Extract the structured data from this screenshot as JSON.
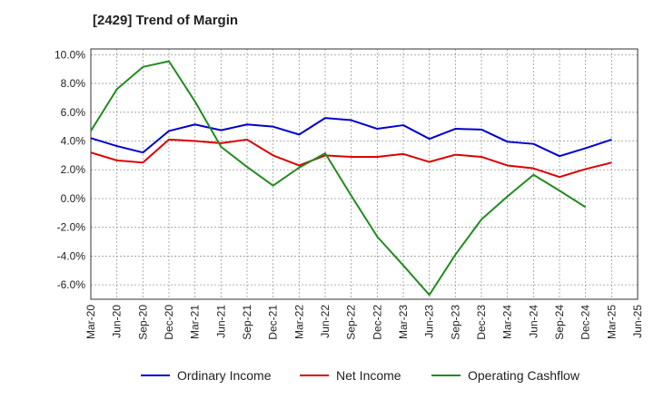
{
  "chart_data": {
    "type": "line",
    "title": "[2429]  Trend of Margin",
    "xlabel": "",
    "ylabel": "",
    "x": [
      "Mar-20",
      "Jun-20",
      "Sep-20",
      "Dec-20",
      "Mar-21",
      "Jun-21",
      "Sep-21",
      "Dec-21",
      "Mar-22",
      "Jun-22",
      "Sep-22",
      "Dec-22",
      "Mar-23",
      "Jun-23",
      "Sep-23",
      "Dec-23",
      "Mar-24",
      "Jun-24",
      "Sep-24",
      "Dec-24",
      "Mar-25",
      "Jun-25"
    ],
    "yticks": [
      "10.0%",
      "8.0%",
      "6.0%",
      "4.0%",
      "2.0%",
      "0.0%",
      "-2.0%",
      "-4.0%",
      "-6.0%"
    ],
    "ylim": [
      -7.0,
      10.4
    ],
    "grid": true,
    "legend_position": "bottom",
    "series": [
      {
        "name": "Ordinary Income",
        "color": "#0000cc",
        "values": [
          4.2,
          3.65,
          3.2,
          4.7,
          5.15,
          4.75,
          5.15,
          5.0,
          4.45,
          5.6,
          5.45,
          4.85,
          5.1,
          4.15,
          4.85,
          4.8,
          3.95,
          3.8,
          2.95,
          3.5,
          4.1,
          null
        ]
      },
      {
        "name": "Net Income",
        "color": "#dd0000",
        "values": [
          3.2,
          2.65,
          2.5,
          4.1,
          4.0,
          3.85,
          4.1,
          3.0,
          2.3,
          3.0,
          2.9,
          2.9,
          3.1,
          2.55,
          3.05,
          2.9,
          2.3,
          2.1,
          1.5,
          2.05,
          2.5,
          null
        ]
      },
      {
        "name": "Operating Cashflow",
        "color": "#228b22",
        "values": [
          4.7,
          7.6,
          9.15,
          9.55,
          6.75,
          3.6,
          2.2,
          0.9,
          2.15,
          3.15,
          0.2,
          -2.65,
          -4.65,
          -6.7,
          -3.9,
          -1.45,
          0.15,
          1.65,
          0.55,
          -0.6,
          null,
          null
        ]
      }
    ]
  }
}
